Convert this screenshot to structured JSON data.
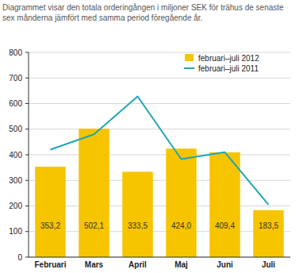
{
  "chart_data": {
    "type": "bar",
    "title": "Diagrammet visar den totala orderingången i miljoner SEK för trähus de senaste sex månderna jämfört med samma period föregående år.",
    "categories": [
      "Februari",
      "Mars",
      "April",
      "Maj",
      "Juni",
      "Juli"
    ],
    "series": [
      {
        "name": "februari–juli 2012",
        "type": "bar",
        "color": "#f7c400",
        "values": [
          353.2,
          502.1,
          333.5,
          424.0,
          409.4,
          183.5
        ],
        "value_labels": [
          "353,2",
          "502,1",
          "333,5",
          "424,0",
          "409,4",
          "183,5"
        ]
      },
      {
        "name": "februari–juli 2011",
        "type": "line",
        "color": "#1ea6b5",
        "values": [
          420,
          480,
          628,
          383,
          410,
          205
        ]
      }
    ],
    "ylim": [
      0,
      800
    ],
    "yticks": [
      0,
      100,
      200,
      300,
      400,
      500,
      600,
      700,
      800
    ],
    "grid": true,
    "legend": "upper right",
    "data_labels": true
  }
}
